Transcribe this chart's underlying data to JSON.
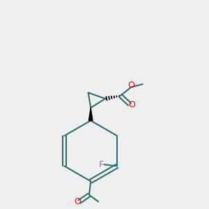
{
  "background_color": "#efefef",
  "bond_color": "#2d6e6e",
  "bond_width": 1.5,
  "atom_colors": {
    "O": "#ff0000",
    "F": "#cc44cc",
    "C": "#000000",
    "default": "#2d6e6e"
  },
  "figsize": [
    3.0,
    3.0
  ],
  "dpi": 100,
  "scale": 0.55
}
